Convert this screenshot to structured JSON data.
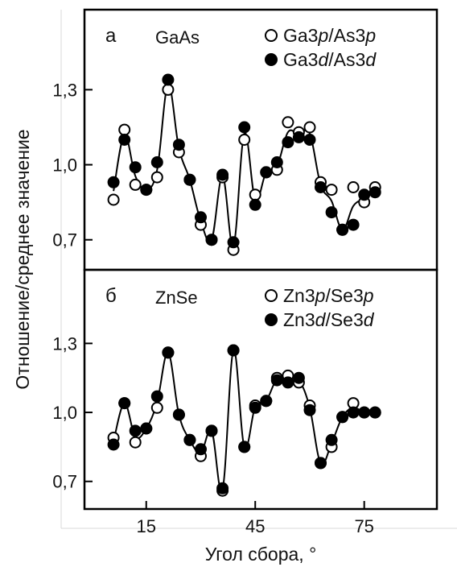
{
  "chart_data": {
    "type": "line",
    "xlabel": "Угол сбора, °",
    "ylabel": "Отношение/среднее значение",
    "x_ticks": [
      15,
      45,
      75
    ],
    "x_tick_labels": [
      "15",
      "45",
      "75"
    ],
    "xlim": [
      -2,
      95
    ],
    "ylim": [
      0.58,
      1.62
    ],
    "y_ticks": [
      0.7,
      1.0,
      1.3
    ],
    "y_tick_labels": [
      "0,7",
      "1,0",
      "1,3"
    ],
    "grid": false,
    "legend_position": "top-right",
    "panels": [
      {
        "letter": "а",
        "title": "GaAs",
        "series": [
          {
            "name": "Ga3p/As3p",
            "name_parts": [
              "Ga3",
              "p",
              "/As3",
              "p"
            ],
            "marker": "open-circle",
            "x": [
              6,
              9,
              12,
              15,
              18,
              21,
              24,
              27,
              30,
              33,
              36,
              39,
              42,
              45,
              48,
              51,
              54,
              57,
              60,
              63,
              66,
              69,
              72,
              75,
              78
            ],
            "y": [
              0.86,
              1.14,
              0.92,
              0.9,
              0.95,
              1.3,
              1.05,
              0.94,
              0.76,
              0.7,
              0.95,
              0.66,
              1.1,
              0.88,
              0.97,
              0.98,
              1.17,
              1.13,
              1.15,
              0.93,
              0.9,
              0.74,
              0.91,
              0.85,
              0.91
            ]
          },
          {
            "name": "Ga3d/As3d",
            "name_parts": [
              "Ga3",
              "d",
              "/As3",
              "d"
            ],
            "marker": "filled-circle",
            "x": [
              6,
              9,
              12,
              15,
              18,
              21,
              24,
              27,
              30,
              33,
              36,
              39,
              42,
              45,
              48,
              51,
              54,
              57,
              60,
              63,
              66,
              69,
              72,
              75,
              78
            ],
            "y": [
              0.93,
              1.1,
              0.99,
              0.9,
              1.01,
              1.34,
              1.08,
              0.94,
              0.79,
              0.7,
              0.96,
              0.69,
              1.15,
              0.84,
              0.97,
              1.01,
              1.09,
              1.11,
              1.1,
              0.91,
              0.81,
              0.74,
              0.76,
              0.88,
              0.89
            ]
          }
        ]
      },
      {
        "letter": "б",
        "title": "ZnSe",
        "series": [
          {
            "name": "Zn3p/Se3p",
            "name_parts": [
              "Zn3",
              "p",
              "/Se3",
              "p"
            ],
            "marker": "open-circle",
            "x": [
              6,
              9,
              12,
              15,
              18,
              21,
              24,
              27,
              30,
              33,
              36,
              39,
              42,
              45,
              48,
              51,
              54,
              57,
              60,
              63,
              66,
              69,
              72,
              75,
              78
            ],
            "y": [
              0.89,
              1.04,
              0.87,
              0.93,
              1.02,
              1.26,
              0.99,
              0.88,
              0.81,
              0.92,
              0.66,
              1.27,
              0.85,
              1.03,
              1.05,
              1.15,
              1.16,
              1.13,
              1.03,
              0.78,
              0.85,
              0.98,
              1.04,
              1.0,
              1.0
            ]
          },
          {
            "name": "Zn3d/Se3d",
            "name_parts": [
              "Zn3",
              "d",
              "/Se3",
              "d"
            ],
            "marker": "filled-circle",
            "x": [
              6,
              9,
              12,
              15,
              18,
              21,
              24,
              27,
              30,
              33,
              36,
              39,
              42,
              45,
              48,
              51,
              54,
              57,
              60,
              63,
              66,
              69,
              72,
              75,
              78
            ],
            "y": [
              0.86,
              1.04,
              0.92,
              0.93,
              1.07,
              1.26,
              0.99,
              0.88,
              0.84,
              0.92,
              0.67,
              1.27,
              0.85,
              1.02,
              1.05,
              1.14,
              1.13,
              1.15,
              1.01,
              0.78,
              0.88,
              0.98,
              1.0,
              1.0,
              1.0
            ]
          }
        ]
      }
    ]
  }
}
